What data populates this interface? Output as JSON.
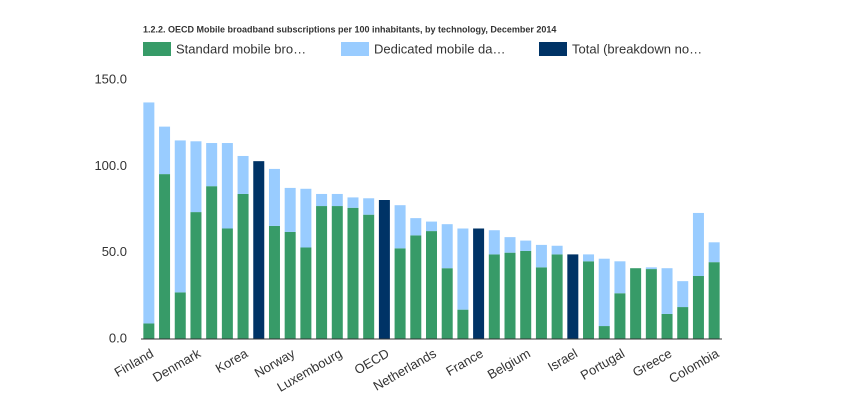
{
  "chart_data": {
    "type": "bar",
    "stacked": true,
    "title": "1.2.2. OECD Mobile broadband subscriptions per 100 inhabitants, by technology, December 2014",
    "categories": [
      "Finland",
      null,
      null,
      "Denmark",
      null,
      null,
      "Korea",
      null,
      null,
      "Norway",
      null,
      null,
      "Luxembourg",
      null,
      null,
      "OECD",
      null,
      null,
      "Netherlands",
      null,
      null,
      "France",
      null,
      null,
      "Belgium",
      null,
      null,
      "Israel",
      null,
      null,
      "Portugal",
      null,
      null,
      "Greece",
      null,
      null,
      "Colombia"
    ],
    "series": [
      {
        "name": "Standard mobile bro…",
        "color": "#379b68",
        "values": [
          9,
          95.5,
          27,
          73.5,
          88.5,
          64,
          84,
          null,
          65.5,
          62,
          53,
          77,
          77,
          76,
          72,
          null,
          52.5,
          60,
          62.5,
          41,
          17,
          null,
          49,
          50,
          51,
          41.5,
          49,
          null,
          45,
          7.5,
          26.5,
          41,
          40.5,
          14.5,
          18.5,
          36.5,
          44.5
        ]
      },
      {
        "name": "Dedicated mobile da…",
        "color": "#99ccff",
        "values": [
          128,
          27.5,
          88,
          41,
          25,
          49.5,
          22,
          null,
          33,
          25.5,
          34,
          7,
          7,
          6,
          9.5,
          null,
          25,
          10,
          5.5,
          25.5,
          47,
          null,
          14,
          9,
          6,
          13,
          5,
          null,
          4,
          39,
          18.5,
          null,
          1,
          26.5,
          15,
          36.5,
          11.5
        ]
      },
      {
        "name": "Total (breakdown no…",
        "color": "#003366",
        "values": [
          null,
          null,
          null,
          null,
          null,
          null,
          null,
          103,
          null,
          null,
          null,
          null,
          null,
          null,
          null,
          80.5,
          null,
          null,
          null,
          null,
          null,
          64,
          null,
          null,
          null,
          null,
          null,
          49,
          null,
          null,
          null,
          null,
          null,
          null,
          null,
          null,
          null
        ]
      }
    ],
    "ylim": [
      0,
      150
    ],
    "yticks": [
      {
        "value": 0,
        "label": "0.0"
      },
      {
        "value": 50,
        "label": "50.0"
      },
      {
        "value": 100,
        "label": "100.0"
      },
      {
        "value": 150,
        "label": "150.0"
      }
    ],
    "grid": false
  }
}
